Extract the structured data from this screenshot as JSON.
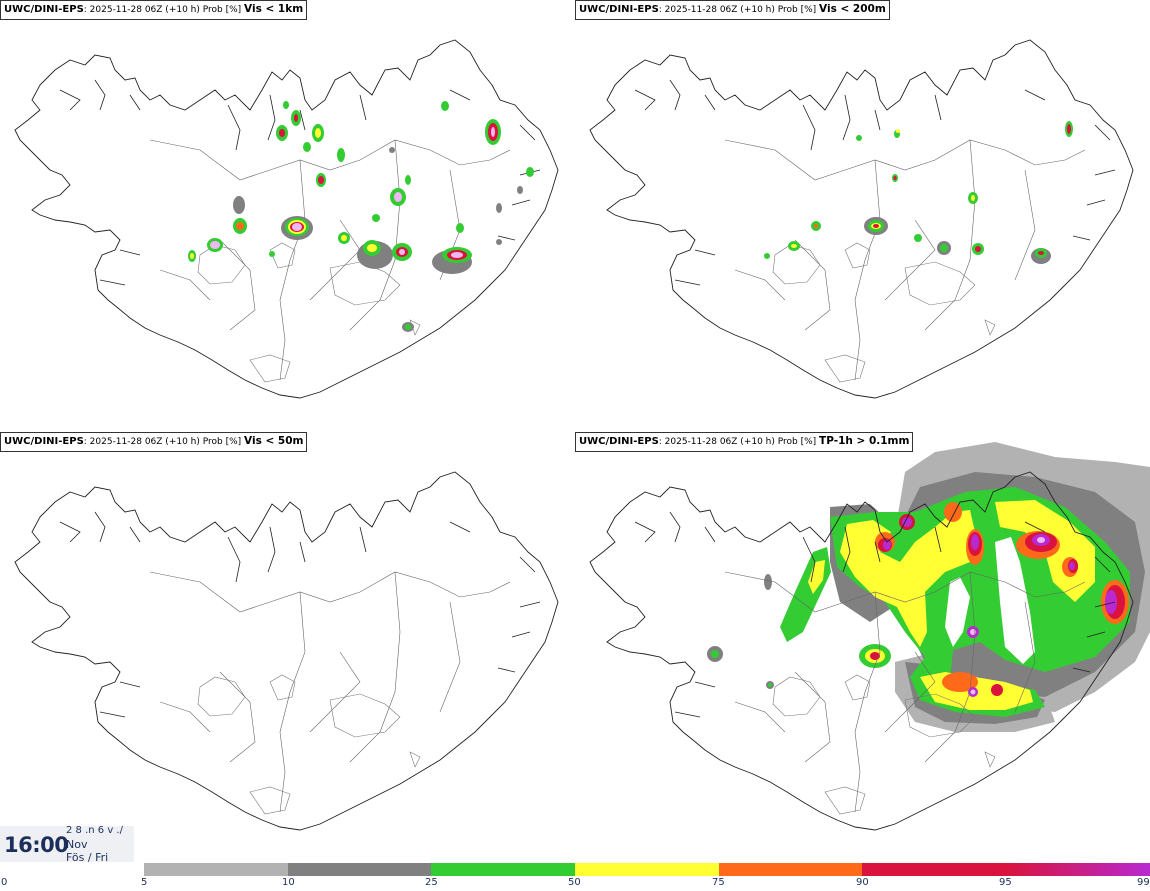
{
  "panels": [
    {
      "model": "UWC/DINI-EPS",
      "meta": ": 2025-11-28 06Z (+10 h) Prob [%] ",
      "field": "Vis < 1km"
    },
    {
      "model": "UWC/DINI-EPS",
      "meta": ": 2025-11-28 06Z (+10 h) Prob [%] ",
      "field": "Vis < 200m"
    },
    {
      "model": "UWC/DINI-EPS",
      "meta": ": 2025-11-28 06Z (+10 h) Prob [%] ",
      "field": "Vis < 50m"
    },
    {
      "model": "UWC/DINI-EPS",
      "meta": ": 2025-11-28 06Z (+10 h) Prob [%] ",
      "field": "TP-1h > 0.1mm"
    }
  ],
  "time": {
    "clock": "16:00",
    "daycode": "2 8 .n 6 v ./",
    "month": "Nov",
    "weekday": "Fös / Fri"
  },
  "legend": {
    "ticks": [
      "0",
      "5",
      "10",
      "25",
      "50",
      "75",
      "90",
      "95",
      "99"
    ],
    "colors": [
      "#ffffff",
      "#b2b2b2",
      "#808080",
      "#33cc33",
      "#ffff33",
      "#ff6a1a",
      "#d9133d",
      "#b82ad0",
      "#f0b8f2"
    ]
  }
}
